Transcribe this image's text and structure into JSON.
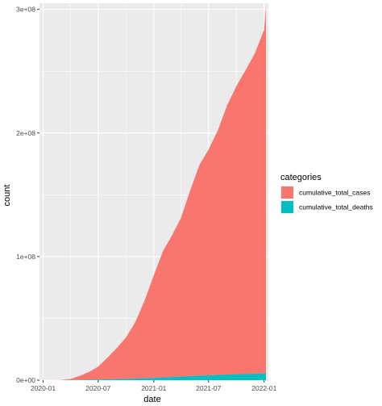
{
  "chart_data": {
    "type": "area",
    "stacked": true,
    "xlabel": "date",
    "ylabel": "count",
    "x_ticks": [
      "2020-01",
      "2020-07",
      "2021-01",
      "2021-07",
      "2022-01"
    ],
    "y_ticks": [
      "0e+00",
      "1e+08",
      "2e+08",
      "3e+08"
    ],
    "xlim": [
      "2019-12-20",
      "2022-01-15"
    ],
    "ylim": [
      0,
      305000000
    ],
    "legend": {
      "title": "categories",
      "position": "right"
    },
    "grid": true,
    "panel_background": "#EBEBEB",
    "x": [
      "2020-01-22",
      "2020-03-01",
      "2020-04-01",
      "2020-05-01",
      "2020-06-01",
      "2020-07-01",
      "2020-08-01",
      "2020-09-01",
      "2020-10-01",
      "2020-11-01",
      "2020-12-01",
      "2021-01-01",
      "2021-02-01",
      "2021-03-01",
      "2021-04-01",
      "2021-05-01",
      "2021-06-01",
      "2021-07-01",
      "2021-08-01",
      "2021-09-01",
      "2021-10-01",
      "2021-11-01",
      "2021-12-01",
      "2022-01-01",
      "2022-01-07"
    ],
    "series": [
      {
        "name": "cumulative_total_cases",
        "color": "#F8766D",
        "values": [
          600,
          90000,
          900000,
          3300000,
          6200000,
          10400000,
          17500000,
          25300000,
          33500000,
          45800000,
          62500000,
          83000000,
          102500000,
          114000000,
          128500000,
          150000000,
          170500000,
          182500000,
          198000000,
          218000000,
          233000000,
          246000000,
          259000000,
          278000000,
          297000000
        ]
      },
      {
        "name": "cumulative_total_deaths",
        "color": "#00BFC4",
        "values": [
          17,
          3000,
          50000,
          240000,
          380000,
          510000,
          680000,
          860000,
          1020000,
          1200000,
          1480000,
          1820000,
          2220000,
          2560000,
          2850000,
          3240000,
          3700000,
          3950000,
          4250000,
          4600000,
          4840000,
          5030000,
          5240000,
          5460000,
          5490000
        ]
      }
    ]
  }
}
